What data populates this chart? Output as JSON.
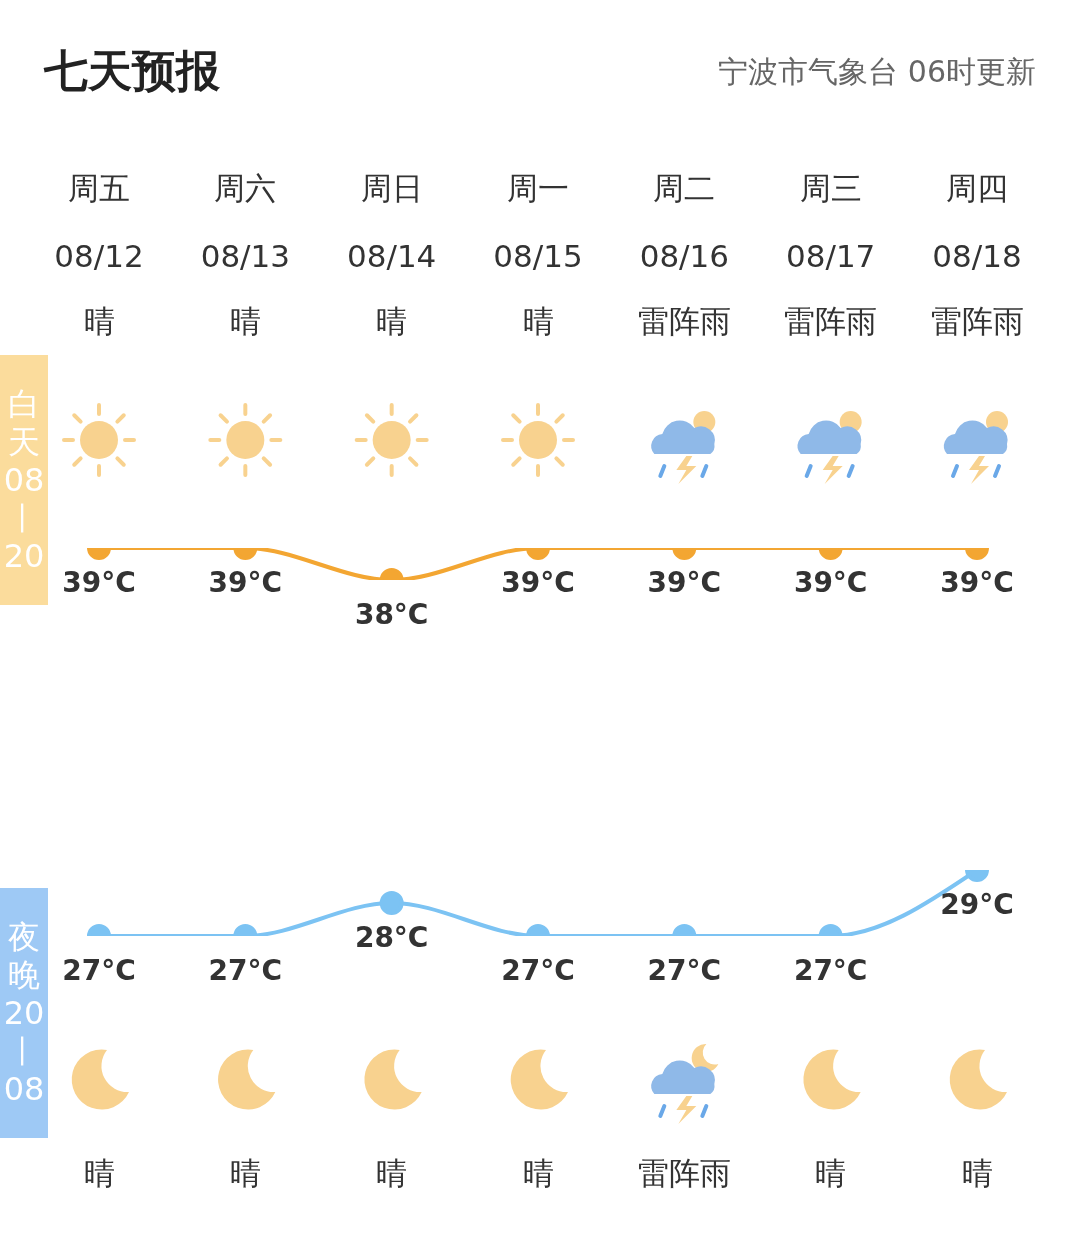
{
  "chart_data": [
    {
      "type": "line",
      "title": "七天预报",
      "subtitle": "宁波市气象台 06时更新",
      "ylabel": "白天08—20",
      "categories": [
        "周五\n08/12\n晴",
        "周六\n08/13\n晴",
        "周日\n08/14\n晴",
        "周一\n08/15\n晴",
        "周二\n08/16\n雷阵雨",
        "周三\n08/17\n雷阵雨",
        "周四\n08/18\n雷阵雨"
      ],
      "series": [
        {
          "color": "#f3a632",
          "values": [
            39,
            39,
            38,
            39,
            39,
            39,
            39
          ],
          "value_labels": [
            "39°C",
            "39°C",
            "38°C",
            "39°C",
            "39°C",
            "39°C",
            "39°C"
          ]
        }
      ],
      "tick_labels": "x",
      "marker": "circle",
      "line_style": "solid"
    },
    {
      "type": "line",
      "ylabel": "夜晚20—08",
      "categories": [
        "晴",
        "晴",
        "晴",
        "晴",
        "雷阵雨",
        "晴",
        "晴"
      ],
      "series": [
        {
          "color": "#7cc3f3",
          "values": [
            27,
            27,
            28,
            27,
            27,
            27,
            29
          ],
          "value_labels": [
            "27°C",
            "27°C",
            "28°C",
            "27°C",
            "27°C",
            "27°C",
            "29°C"
          ]
        }
      ],
      "tick_labels": "x",
      "marker": "circle",
      "line_style": "solid"
    }
  ]
}
